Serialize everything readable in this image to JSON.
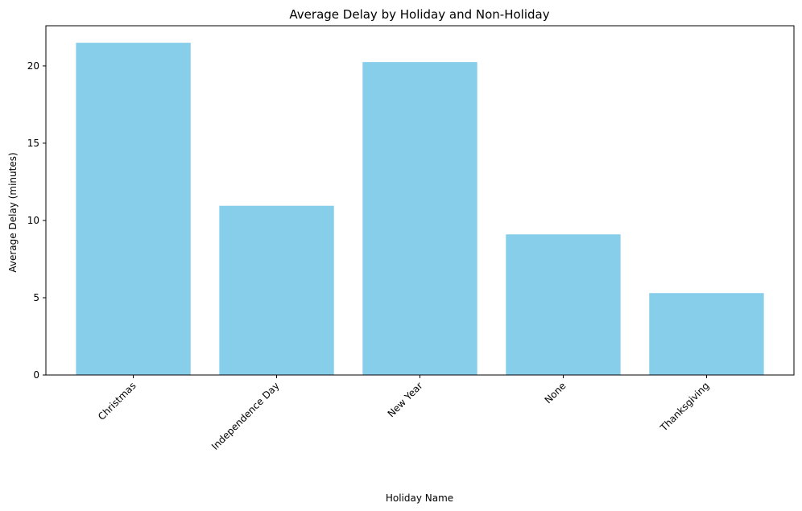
{
  "chart_data": {
    "type": "bar",
    "title": "Average Delay by Holiday and Non-Holiday",
    "xlabel": "Holiday Name",
    "ylabel": "Average Delay (minutes)",
    "categories": [
      "Christmas",
      "Independence Day",
      "New Year",
      "None",
      "Thanksgiving"
    ],
    "values": [
      21.5,
      10.95,
      20.25,
      9.1,
      5.3
    ],
    "yticks": [
      0,
      5,
      10,
      15,
      20
    ],
    "ylim": [
      0,
      22.6
    ],
    "bar_color": "#87ceeb",
    "grid": false,
    "x_tick_rotation_deg": 45
  }
}
